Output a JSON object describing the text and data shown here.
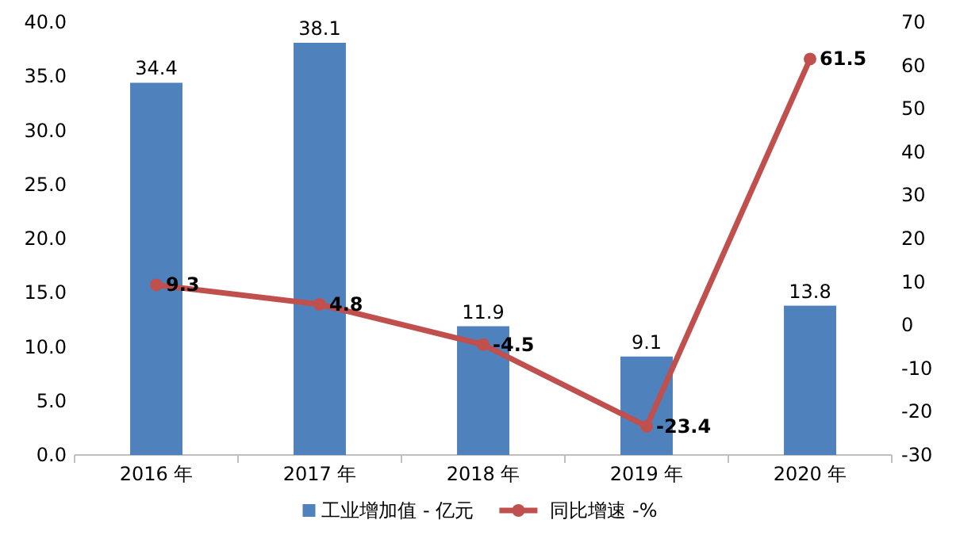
{
  "chart_data": {
    "type": "bar",
    "categories": [
      "2016 年",
      "2017 年",
      "2018 年",
      "2019 年",
      "2020 年"
    ],
    "series": [
      {
        "name": "工业增加值 - 亿元",
        "color": "#4f81bd",
        "values": [
          34.4,
          38.1,
          11.9,
          9.1,
          13.8
        ]
      },
      {
        "name": "同比增速 -%",
        "color": "#c0504d",
        "type": "line",
        "axis": "y2",
        "values": [
          9.3,
          4.8,
          -4.5,
          -23.4,
          61.5
        ]
      }
    ],
    "ylim": [
      0,
      40
    ],
    "yticks": [
      {
        "value": 0,
        "label": "0.0"
      },
      {
        "value": 5,
        "label": "5.0"
      },
      {
        "value": 10,
        "label": "10.0"
      },
      {
        "value": 15,
        "label": "15.0"
      },
      {
        "value": 20,
        "label": "20.0"
      },
      {
        "value": 25,
        "label": "25.0"
      },
      {
        "value": 30,
        "label": "30.0"
      },
      {
        "value": 35,
        "label": "35.0"
      },
      {
        "value": 40,
        "label": "40.0"
      }
    ],
    "y2lim": [
      -30,
      70
    ],
    "y2ticks": [
      -30,
      -20,
      -10,
      0,
      10,
      20,
      30,
      40,
      50,
      60,
      70
    ],
    "data_labels": true,
    "marker": "circle",
    "legend": "bottom"
  }
}
